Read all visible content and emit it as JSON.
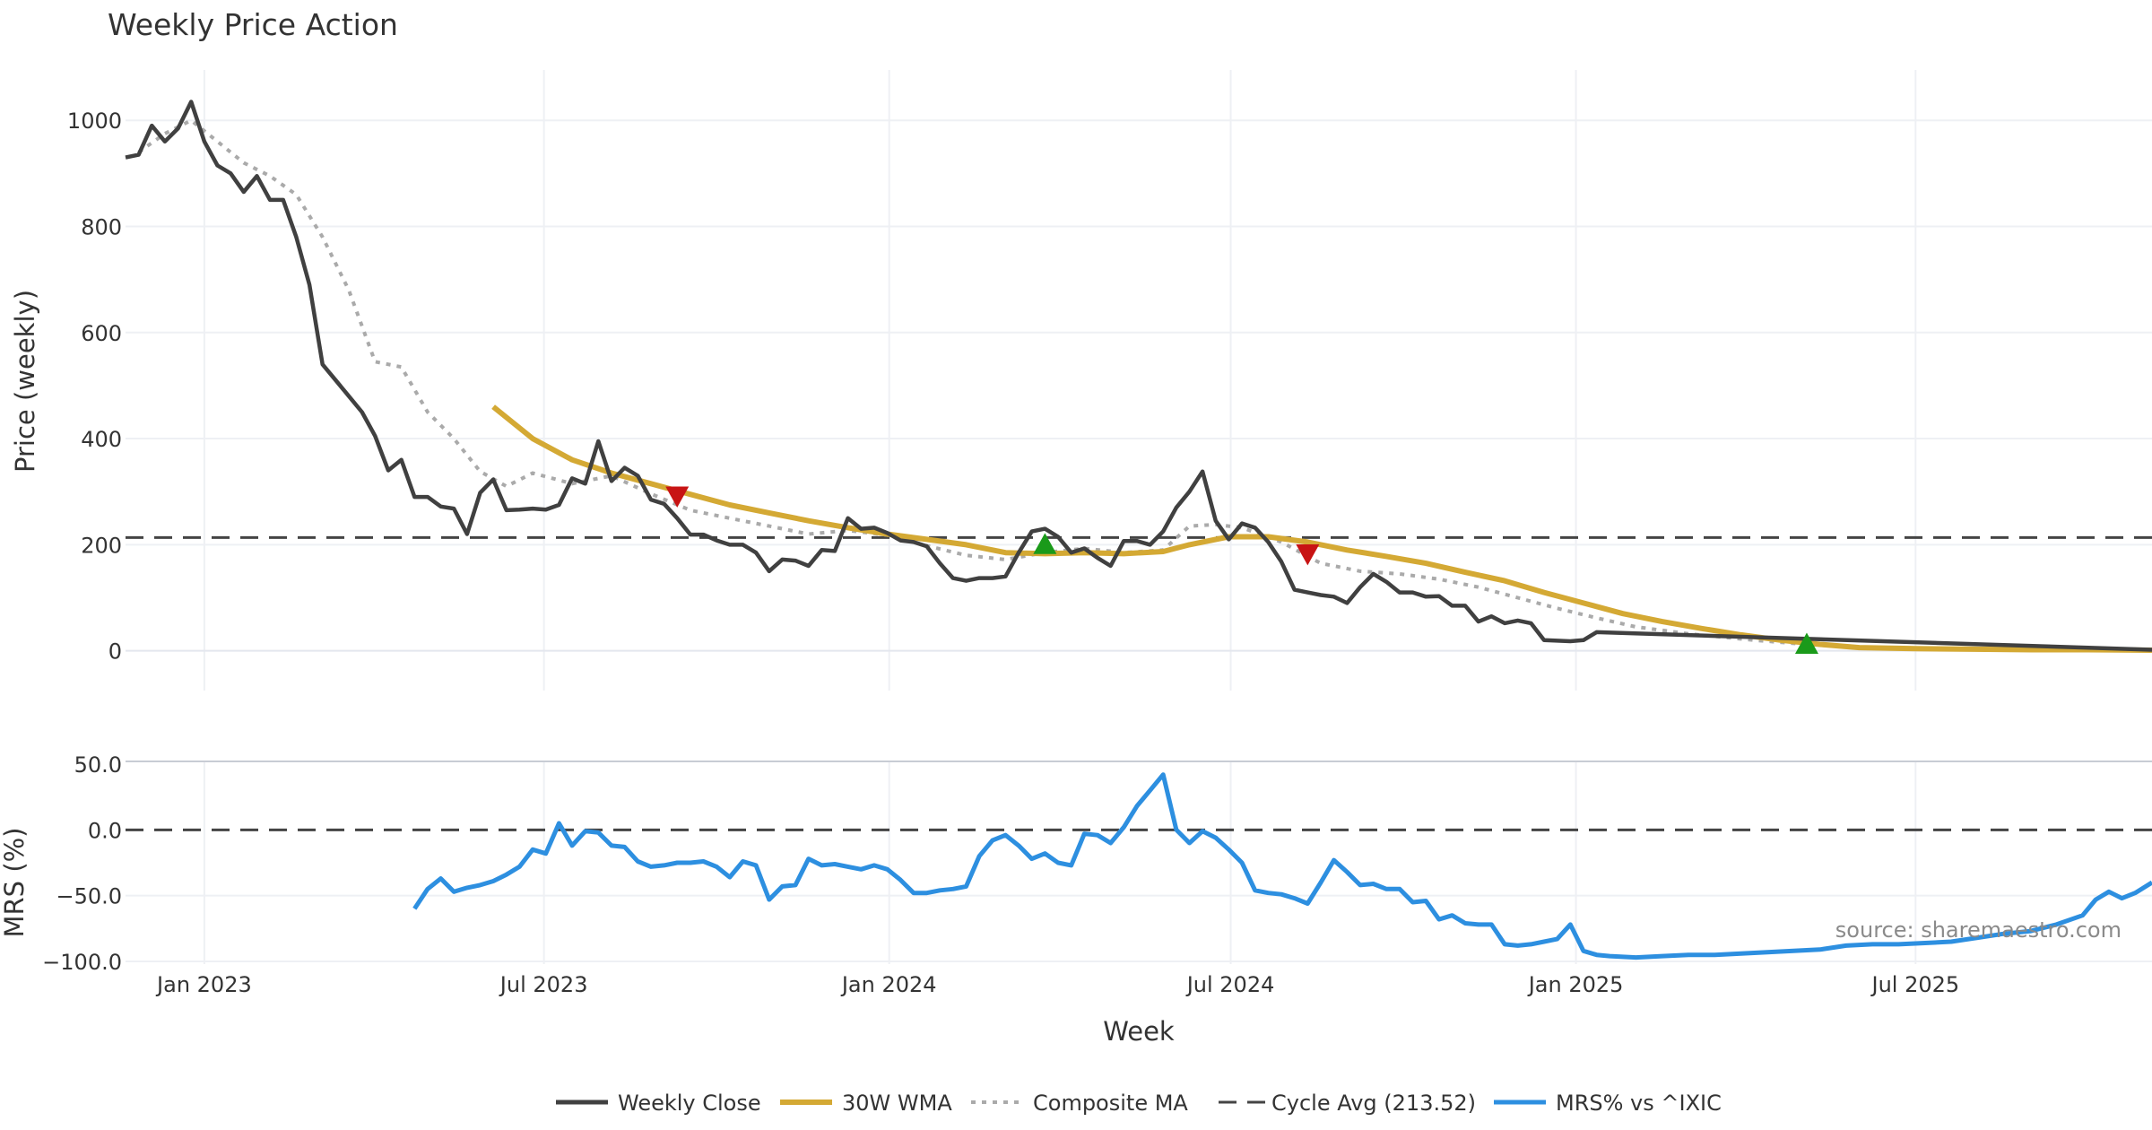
{
  "chart_data": {
    "type": "line",
    "title": "Weekly Price Action",
    "source_note": "source: sharemaestro.com",
    "x_tick_labels": [
      "Jan 2023",
      "Jul 2023",
      "Jan 2024",
      "Jul 2024",
      "Jan 2025",
      "Jul 2025"
    ],
    "xlabel": "Week",
    "x_range": [
      "2022-11-20",
      "2025-11-04"
    ],
    "legend": {
      "placement": "bottom-center",
      "items": [
        "Weekly Close",
        "30W WMA",
        "Composite MA",
        "Cycle Avg (213.52)",
        "MRS% vs ^IXIC"
      ]
    },
    "colors": {
      "close": "#404040",
      "wma": "#d4a934",
      "composite": "#aaaaaa",
      "cycle": "#444444",
      "mrs": "#2d8fe0",
      "buy": "#1a9a1a",
      "sell": "#c81414",
      "grid": "#eef0f4"
    },
    "price_panel": {
      "ylabel": "Price (weekly)",
      "ylim": [
        -75,
        1095
      ],
      "y_tick_labels": [
        "0",
        "200",
        "400",
        "600",
        "800",
        "1000"
      ],
      "cycle_avg": 213.52,
      "weekly_close": {
        "dates": [
          "2022-11-20",
          "2022-11-27",
          "2022-12-04",
          "2022-12-11",
          "2022-12-18",
          "2022-12-25",
          "2023-01-01",
          "2023-01-08",
          "2023-01-15",
          "2023-01-22",
          "2023-01-29",
          "2023-02-05",
          "2023-02-12",
          "2023-02-19",
          "2023-02-26",
          "2023-03-05",
          "2023-03-12",
          "2023-03-19",
          "2023-03-26",
          "2023-04-02",
          "2023-04-09",
          "2023-04-16",
          "2023-04-23",
          "2023-04-30",
          "2023-05-07",
          "2023-05-14",
          "2023-05-21",
          "2023-05-28",
          "2023-06-04",
          "2023-06-11",
          "2023-06-18",
          "2023-06-25",
          "2023-07-02",
          "2023-07-09",
          "2023-07-16",
          "2023-07-23",
          "2023-07-30",
          "2023-08-06",
          "2023-08-13",
          "2023-08-20",
          "2023-08-27",
          "2023-09-03",
          "2023-09-10",
          "2023-09-17",
          "2023-09-24",
          "2023-10-01",
          "2023-10-08",
          "2023-10-15",
          "2023-10-22",
          "2023-10-29",
          "2023-11-05",
          "2023-11-12",
          "2023-11-19",
          "2023-11-26",
          "2023-12-03",
          "2023-12-10",
          "2023-12-17",
          "2023-12-24",
          "2023-12-31",
          "2024-01-07",
          "2024-01-14",
          "2024-01-21",
          "2024-01-28",
          "2024-02-04",
          "2024-02-11",
          "2024-02-18",
          "2024-02-25",
          "2024-03-03",
          "2024-03-10",
          "2024-03-17",
          "2024-03-24",
          "2024-03-31",
          "2024-04-07",
          "2024-04-14",
          "2024-04-21",
          "2024-04-28",
          "2024-05-05",
          "2024-05-12",
          "2024-05-19",
          "2024-05-26",
          "2024-06-02",
          "2024-06-09",
          "2024-06-16",
          "2024-06-23",
          "2024-06-30",
          "2024-07-07",
          "2024-07-14",
          "2024-07-21",
          "2024-07-28",
          "2024-08-04",
          "2024-08-11",
          "2024-08-18",
          "2024-08-25",
          "2024-09-01",
          "2024-09-08",
          "2024-09-15",
          "2024-09-22",
          "2024-09-29",
          "2024-10-06",
          "2024-10-13",
          "2024-10-20",
          "2024-10-27",
          "2024-11-03",
          "2024-11-10",
          "2024-11-17",
          "2024-11-24",
          "2024-12-01",
          "2024-12-08",
          "2024-12-15",
          "2024-12-22",
          "2024-12-29",
          "2025-01-05",
          "2025-01-12",
          "2025-11-04"
        ],
        "values": [
          930,
          935,
          990,
          960,
          985,
          1035,
          960,
          915,
          900,
          865,
          895,
          850,
          850,
          780,
          690,
          540,
          510,
          480,
          450,
          405,
          340,
          360,
          290,
          290,
          272,
          268,
          220,
          298,
          323,
          265,
          266,
          268,
          266,
          275,
          325,
          315,
          395,
          320,
          345,
          330,
          285,
          277,
          250,
          219,
          219,
          208,
          200,
          200,
          185,
          150,
          172,
          170,
          160,
          190,
          188,
          250,
          230,
          232,
          222,
          208,
          205,
          197,
          165,
          137,
          132,
          137,
          137,
          140,
          185,
          225,
          230,
          215,
          185,
          193,
          175,
          160,
          207,
          207,
          200,
          225,
          270,
          300,
          338,
          245,
          210,
          240,
          232,
          205,
          168,
          115,
          110,
          105,
          102,
          90,
          120,
          145,
          130,
          110,
          110,
          102,
          103,
          85,
          85,
          55,
          65,
          52,
          57,
          52,
          20,
          19,
          18,
          20,
          35,
          2
        ]
      },
      "wma_30w": {
        "dates": [
          "2023-06-04",
          "2023-06-25",
          "2023-07-16",
          "2023-08-06",
          "2023-08-27",
          "2023-09-17",
          "2023-10-08",
          "2023-10-29",
          "2023-11-19",
          "2023-12-10",
          "2023-12-31",
          "2024-01-21",
          "2024-02-11",
          "2024-03-03",
          "2024-03-24",
          "2024-04-14",
          "2024-05-05",
          "2024-05-26",
          "2024-06-09",
          "2024-06-30",
          "2024-07-21",
          "2024-08-11",
          "2024-09-01",
          "2024-09-22",
          "2024-10-13",
          "2024-11-03",
          "2024-11-24",
          "2024-12-15",
          "2025-01-05",
          "2025-01-26",
          "2025-02-16",
          "2025-03-09",
          "2025-03-30",
          "2025-04-20",
          "2025-05-11",
          "2025-06-01",
          "2025-07-01",
          "2025-08-01",
          "2025-09-01",
          "2025-10-01",
          "2025-11-04"
        ],
        "values": [
          460,
          400,
          360,
          335,
          315,
          295,
          275,
          260,
          245,
          232,
          220,
          210,
          200,
          185,
          183,
          185,
          183,
          187,
          200,
          215,
          215,
          205,
          190,
          178,
          165,
          148,
          132,
          110,
          90,
          70,
          55,
          42,
          30,
          20,
          12,
          6,
          4,
          3,
          2,
          2,
          1
        ]
      },
      "composite_ma": {
        "dates": [
          "2022-11-27",
          "2022-12-11",
          "2022-12-25",
          "2023-01-08",
          "2023-01-22",
          "2023-02-05",
          "2023-02-19",
          "2023-03-05",
          "2023-03-19",
          "2023-04-02",
          "2023-04-16",
          "2023-04-30",
          "2023-05-14",
          "2023-05-28",
          "2023-06-11",
          "2023-06-25",
          "2023-07-16",
          "2023-08-06",
          "2023-08-27",
          "2023-09-17",
          "2023-10-08",
          "2023-10-29",
          "2023-11-19",
          "2023-12-10",
          "2023-12-31",
          "2024-01-21",
          "2024-02-11",
          "2024-03-03",
          "2024-03-24",
          "2024-04-14",
          "2024-05-05",
          "2024-05-26",
          "2024-06-09",
          "2024-06-23",
          "2024-07-07",
          "2024-07-28",
          "2024-08-18",
          "2024-09-08",
          "2024-09-29",
          "2024-10-20",
          "2024-11-10",
          "2024-12-01",
          "2024-12-22",
          "2025-01-12",
          "2025-02-02",
          "2025-03-02",
          "2025-04-06",
          "2025-05-04",
          "2025-06-01",
          "2025-07-01",
          "2025-08-01",
          "2025-09-01",
          "2025-10-01",
          "2025-11-04"
        ],
        "values": [
          940,
          975,
          1000,
          960,
          920,
          895,
          860,
          780,
          680,
          545,
          535,
          450,
          400,
          338,
          310,
          335,
          315,
          330,
          296,
          265,
          250,
          235,
          220,
          227,
          218,
          198,
          180,
          172,
          185,
          193,
          185,
          190,
          235,
          238,
          232,
          205,
          165,
          150,
          145,
          135,
          120,
          100,
          80,
          62,
          45,
          32,
          20,
          12,
          7,
          5,
          3,
          2,
          2,
          1
        ]
      },
      "signals": [
        {
          "type": "sell",
          "date": "2023-09-10",
          "value": 292
        },
        {
          "type": "buy",
          "date": "2024-03-24",
          "value": 200
        },
        {
          "type": "sell",
          "date": "2024-08-11",
          "value": 183
        },
        {
          "type": "buy",
          "date": "2025-05-04",
          "value": 12
        }
      ]
    },
    "mrs_panel": {
      "ylabel": "MRS (%)",
      "ylim": [
        -100,
        50
      ],
      "y_tick_labels": [
        "−100.0",
        "−50.0",
        "0.0",
        "50.0"
      ],
      "mrs_vs_ixic": {
        "dates": [
          "2023-04-23",
          "2023-04-30",
          "2023-05-07",
          "2023-05-14",
          "2023-05-21",
          "2023-05-28",
          "2023-06-04",
          "2023-06-11",
          "2023-06-18",
          "2023-06-25",
          "2023-07-02",
          "2023-07-09",
          "2023-07-16",
          "2023-07-23",
          "2023-07-30",
          "2023-08-06",
          "2023-08-13",
          "2023-08-20",
          "2023-08-27",
          "2023-09-03",
          "2023-09-10",
          "2023-09-17",
          "2023-09-24",
          "2023-10-01",
          "2023-10-08",
          "2023-10-15",
          "2023-10-22",
          "2023-10-29",
          "2023-11-05",
          "2023-11-12",
          "2023-11-19",
          "2023-11-26",
          "2023-12-03",
          "2023-12-10",
          "2023-12-17",
          "2023-12-24",
          "2023-12-31",
          "2024-01-07",
          "2024-01-14",
          "2024-01-21",
          "2024-01-28",
          "2024-02-04",
          "2024-02-11",
          "2024-02-18",
          "2024-02-25",
          "2024-03-03",
          "2024-03-10",
          "2024-03-17",
          "2024-03-24",
          "2024-03-31",
          "2024-04-07",
          "2024-04-14",
          "2024-04-21",
          "2024-04-28",
          "2024-05-05",
          "2024-05-12",
          "2024-05-19",
          "2024-05-26",
          "2024-06-02",
          "2024-06-09",
          "2024-06-16",
          "2024-06-23",
          "2024-06-30",
          "2024-07-07",
          "2024-07-14",
          "2024-07-21",
          "2024-07-28",
          "2024-08-04",
          "2024-08-11",
          "2024-08-18",
          "2024-08-25",
          "2024-09-01",
          "2024-09-08",
          "2024-09-15",
          "2024-09-22",
          "2024-09-29",
          "2024-10-06",
          "2024-10-13",
          "2024-10-20",
          "2024-10-27",
          "2024-11-03",
          "2024-11-10",
          "2024-11-17",
          "2024-11-24",
          "2024-12-01",
          "2024-12-08",
          "2024-12-15",
          "2024-12-22",
          "2024-12-29",
          "2025-01-05",
          "2025-01-12",
          "2025-01-19",
          "2025-02-02",
          "2025-02-16",
          "2025-03-02",
          "2025-03-16",
          "2025-03-30",
          "2025-04-13",
          "2025-04-27",
          "2025-05-11",
          "2025-05-25",
          "2025-06-08",
          "2025-06-22",
          "2025-07-06",
          "2025-07-20",
          "2025-08-03",
          "2025-08-17",
          "2025-08-31",
          "2025-09-14",
          "2025-09-28",
          "2025-10-05",
          "2025-10-12",
          "2025-10-19",
          "2025-10-26",
          "2025-11-04"
        ],
        "values": [
          -60,
          -45,
          -37,
          -47,
          -44,
          -42,
          -39,
          -34,
          -28,
          -15,
          -18,
          5,
          -12,
          -1,
          -2,
          -12,
          -13,
          -24,
          -28,
          -27,
          -25,
          -25,
          -24,
          -28,
          -36,
          -24,
          -27,
          -53,
          -43,
          -42,
          -22,
          -27,
          -26,
          -28,
          -30,
          -27,
          -30,
          -38,
          -48,
          -48,
          -46,
          -45,
          -43,
          -20,
          -8,
          -4,
          -12,
          -22,
          -18,
          -25,
          -27,
          -3,
          -4,
          -10,
          2,
          18,
          30,
          42,
          0,
          -10,
          -1,
          -6,
          -15,
          -25,
          -46,
          -48,
          -49,
          -52,
          -56,
          -40,
          -23,
          -32,
          -42,
          -41,
          -45,
          -45,
          -55,
          -54,
          -68,
          -65,
          -71,
          -72,
          -72,
          -87,
          -88,
          -87,
          -85,
          -83,
          -72,
          -92,
          -95,
          -96,
          -97,
          -96,
          -95,
          -95,
          -94,
          -93,
          -92,
          -91,
          -88,
          -87,
          -87,
          -86,
          -85,
          -82,
          -79,
          -77,
          -72,
          -65,
          -53,
          -47,
          -52,
          -48,
          -40
        ]
      }
    }
  }
}
